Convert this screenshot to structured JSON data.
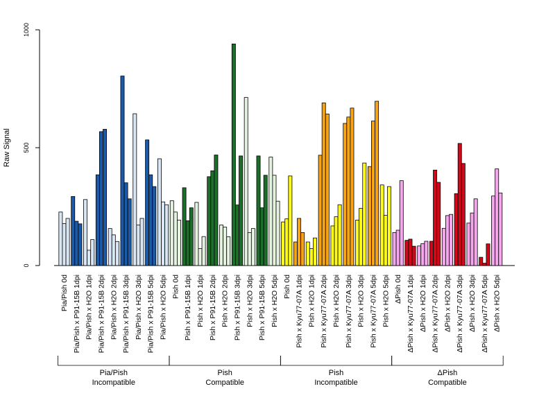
{
  "chart_data": {
    "type": "bar",
    "ylabel": "Raw Signal",
    "ylim": [
      0,
      1000
    ],
    "yticks": [
      "0",
      "500",
      "1000"
    ],
    "grid": false,
    "legend": "none",
    "categories": [
      "Pia/Pish 0d",
      "Pia/Pish x P91-15B 1dpi",
      "Pia/Pish x H2O 1dpi",
      "Pia/Pish x P91-15B 2dpi",
      "Pia/Pish x H2O 2dpi",
      "Pia/Pish x P91-15B 3dpi",
      "Pia/Pish x H2O 3dpi",
      "Pia/Pish x P91-15B 5dpi",
      "Pia/Pish x H2O 5dpi",
      "Pish 0d",
      "Pish x P91-15B 1dpi",
      "Pish x H2O 1dpi",
      "Pish x P91-15B 2dpi",
      "Pish x H2O 2dpi",
      "Pish x P91-15B 3dpi",
      "Pish x H2O 3dpi",
      "Pish x P91-15B 5dpi",
      "Pish x H2O 5dpi",
      "Pish 0d",
      "Pish x Kyu77-07A 1dpi",
      "Pish x H2O 1dpi",
      "Pish x Kyu77-07A 2dpi",
      "Pish x H2O 2dpi",
      "Pish x Kyu77-07A 3dpi",
      "Pish x H2O 3dpi",
      "Pish x Kyu77-07A 5dpi",
      "Pish x H2O 5dpi",
      "ΔPish 0d",
      "ΔPish x Kyu77-07A 1dpi",
      "ΔPish x H2O 1dpi",
      "ΔPish x Kyu77-07A 2dpi",
      "ΔPish x H2O 2dpi",
      "ΔPish x Kyu77-07A 3dpi",
      "ΔPish x H2O 3dpi",
      "ΔPish x Kyu77-07A 5dpi",
      "ΔPish x H2O 5dpi"
    ],
    "values": [
      [
        227,
        178,
        200
      ],
      [
        293,
        188,
        177
      ],
      [
        280,
        65,
        110
      ],
      [
        385,
        568,
        578
      ],
      [
        157,
        130,
        102
      ],
      [
        804,
        351,
        283
      ],
      [
        644,
        172,
        200
      ],
      [
        533,
        385,
        335
      ],
      [
        453,
        270,
        258
      ],
      [
        275,
        227,
        193
      ],
      [
        330,
        190,
        245
      ],
      [
        268,
        72,
        123
      ],
      [
        377,
        402,
        469
      ],
      [
        172,
        163,
        122
      ],
      [
        940,
        257,
        465
      ],
      [
        713,
        140,
        157
      ],
      [
        465,
        245,
        383
      ],
      [
        460,
        383,
        273
      ],
      [
        185,
        198,
        380
      ],
      [
        100,
        200,
        140
      ],
      [
        100,
        72,
        117
      ],
      [
        468,
        690,
        643
      ],
      [
        168,
        207,
        258
      ],
      [
        603,
        630,
        668
      ],
      [
        193,
        243,
        435
      ],
      [
        420,
        613,
        697
      ],
      [
        342,
        213,
        335
      ],
      [
        140,
        150,
        360
      ],
      [
        107,
        112,
        82
      ],
      [
        83,
        93,
        103
      ],
      [
        103,
        405,
        353
      ],
      [
        158,
        212,
        217
      ],
      [
        305,
        518,
        433
      ],
      [
        180,
        223,
        283
      ],
      [
        35,
        10,
        92
      ],
      [
        295,
        410,
        308
      ]
    ],
    "bar_colors": [
      "#d9e6f3",
      "#1b5aa6",
      "#d9e6f3",
      "#1b5aa6",
      "#d9e6f3",
      "#1b5aa6",
      "#d9e6f3",
      "#1b5aa6",
      "#d9e6f3",
      "#e4f2df",
      "#1c6e2a",
      "#e4f2df",
      "#1c6e2a",
      "#e4f2df",
      "#1c6e2a",
      "#e4f2df",
      "#1c6e2a",
      "#e4f2df",
      "#fefb1b",
      "#f5a418",
      "#fefb1b",
      "#f5a418",
      "#fefb1b",
      "#f5a418",
      "#fefb1b",
      "#f5a418",
      "#fefb1b",
      "#f4a7ec",
      "#d0091a",
      "#f4a7ec",
      "#d0091a",
      "#f4a7ec",
      "#d0091a",
      "#f4a7ec",
      "#d0091a",
      "#f4a7ec"
    ],
    "groups": [
      {
        "line1": "Pia/Pish",
        "line2": "Incompatible",
        "size": 9
      },
      {
        "line1": "Pish",
        "line2": "Compatible",
        "size": 9
      },
      {
        "line1": "Pish",
        "line2": "Incompatible",
        "size": 9
      },
      {
        "line1": "ΔPish",
        "line2": "Compatible",
        "size": 9
      }
    ]
  }
}
